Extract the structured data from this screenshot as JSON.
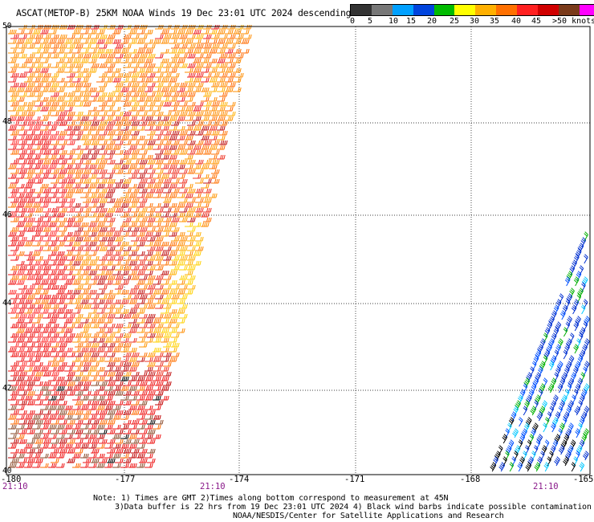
{
  "title": "ASCAT(METOP-B) 25KM NOAA Winds 19 Dec 23:01 UTC 2024 descending",
  "colorbar": {
    "colors": [
      "#333333",
      "#777777",
      "#00a0ff",
      "#0044dd",
      "#00bb00",
      "#ffff00",
      "#ffb000",
      "#ff7000",
      "#ff2020",
      "#d00000",
      "#7a3a1a",
      "#ff00ff",
      "#aa00ff"
    ],
    "labels": [
      "0",
      "5",
      "10",
      "15",
      "20",
      "25",
      "30",
      "35",
      "40",
      "45",
      ">50 knots"
    ]
  },
  "lat_labels": [
    "50",
    "48",
    "46",
    "44",
    "42",
    "40"
  ],
  "lon_labels": [
    "-180",
    "-177",
    "-174",
    "-171",
    "-168",
    "-165"
  ],
  "time_labels": [
    "21:10",
    "21:10",
    "21:10"
  ],
  "notes": [
    "Note: 1) Times are GMT 2)Times along bottom correspond to measurement at 45N",
    "3)Data buffer is 22 hrs from 19 Dec 23:01 UTC 2024 4) Black wind barbs indicate possible contamination",
    "NOAA/NESDIS/Center for Satellite Applications and Research"
  ]
}
